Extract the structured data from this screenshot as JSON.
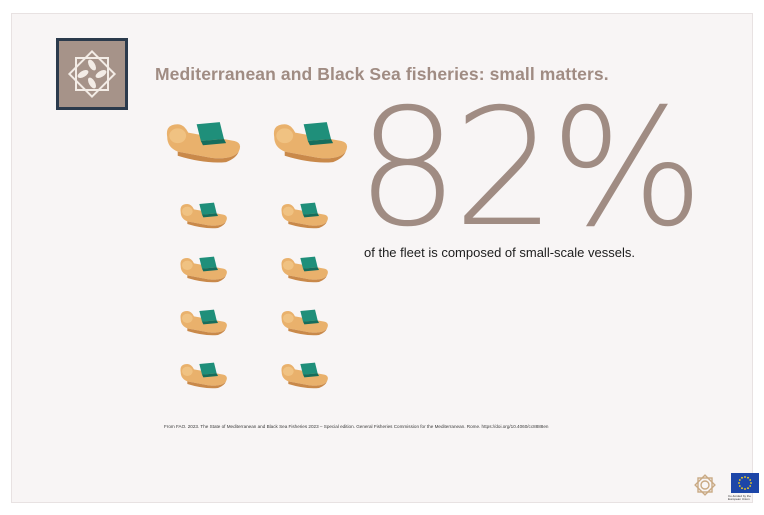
{
  "header": {
    "title": "Mediterranean and Black Sea fisheries: small matters."
  },
  "stat": {
    "value": "82%",
    "description": "of the fleet is composed of small-scale vessels."
  },
  "boats": {
    "large_count": 2,
    "small_count": 8,
    "colors": {
      "hull": "#e9b16c",
      "hull_shadow": "#c9894a",
      "cabin": "#1f8f7a"
    }
  },
  "source": {
    "text": "From FAO. 2023. The State of Mediterranean and Black Sea Fisheries 2023 – Special edition. General Fisheries Commission for the Mediterranean. Rome. https://doi.org/10.4060/cc8888en"
  },
  "footer": {
    "eu_text": "Co-funded by the European Union"
  },
  "colors": {
    "accent": "#a08c83",
    "logo_border": "#2b3a4c",
    "background": "#f8f5f5",
    "eu_blue": "#1d46a8"
  },
  "icons": [
    "gfcm-rosette-logo-icon",
    "fishing-boat-icon",
    "eu-flag-icon"
  ]
}
